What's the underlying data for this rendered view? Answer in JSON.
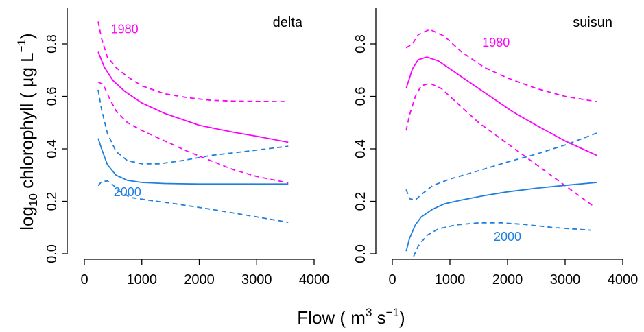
{
  "figure": {
    "ylabel_main": "log",
    "ylabel_sub": "10",
    "ylabel_rest": " chlorophyll (  µg L",
    "ylabel_sup": "−1",
    "ylabel_close": ")",
    "xlabel_main": "Flow ( m",
    "xlabel_sup1": "3",
    "xlabel_mid": " s",
    "xlabel_sup2": "−1",
    "xlabel_close": ")"
  },
  "colors": {
    "1980": "#ff00ff",
    "2000": "#1f7fe0",
    "axis": "#000000"
  },
  "chart_data": [
    {
      "type": "line",
      "title": "delta",
      "xlim": [
        0,
        4000
      ],
      "ylim": [
        0,
        0.9
      ],
      "xticks": [
        0,
        1000,
        2000,
        3000,
        4000
      ],
      "yticks": [
        0.0,
        0.2,
        0.4,
        0.6,
        0.8
      ],
      "xtick_labels": [
        "0",
        "1000",
        "2000",
        "3000",
        "4000"
      ],
      "ytick_labels": [
        "0.0",
        "0.2",
        "0.4",
        "0.6",
        "0.8"
      ],
      "annotations": [
        {
          "text": "1980",
          "x": 700,
          "y": 0.84,
          "color_key": "1980"
        },
        {
          "text": "2000",
          "x": 750,
          "y": 0.22,
          "color_key": "2000"
        }
      ],
      "series": [
        {
          "group": "1980",
          "style": "solid",
          "x": [
            240,
            350,
            500,
            700,
            1000,
            1400,
            2000,
            2600,
            3000,
            3550
          ],
          "y": [
            0.77,
            0.71,
            0.66,
            0.62,
            0.575,
            0.535,
            0.49,
            0.463,
            0.448,
            0.425
          ]
        },
        {
          "group": "1980",
          "style": "dashed",
          "x": [
            240,
            300,
            400,
            550,
            750,
            1000,
            1400,
            1800,
            2200,
            2600,
            3000,
            3550
          ],
          "y": [
            0.885,
            0.82,
            0.75,
            0.71,
            0.675,
            0.64,
            0.61,
            0.595,
            0.585,
            0.582,
            0.581,
            0.58
          ]
        },
        {
          "group": "1980",
          "style": "dashed",
          "x": [
            240,
            330,
            420,
            550,
            750,
            1000,
            1400,
            1800,
            2200,
            2600,
            3000,
            3550
          ],
          "y": [
            0.655,
            0.645,
            0.6,
            0.545,
            0.5,
            0.47,
            0.43,
            0.39,
            0.355,
            0.32,
            0.295,
            0.27
          ]
        },
        {
          "group": "2000",
          "style": "solid",
          "x": [
            240,
            300,
            400,
            550,
            750,
            1000,
            1400,
            2000,
            2600,
            3000,
            3550
          ],
          "y": [
            0.44,
            0.4,
            0.34,
            0.3,
            0.28,
            0.272,
            0.268,
            0.266,
            0.266,
            0.266,
            0.266
          ]
        },
        {
          "group": "2000",
          "style": "dashed",
          "x": [
            240,
            300,
            400,
            550,
            750,
            1000,
            1300,
            1700,
            2200,
            2800,
            3550
          ],
          "y": [
            0.625,
            0.55,
            0.46,
            0.39,
            0.355,
            0.343,
            0.343,
            0.355,
            0.375,
            0.39,
            0.41
          ]
        },
        {
          "group": "2000",
          "style": "dashed",
          "x": [
            240,
            300,
            400,
            500,
            600,
            800,
            1100,
            1600,
            2200,
            2800,
            3550
          ],
          "y": [
            0.26,
            0.275,
            0.278,
            0.262,
            0.24,
            0.215,
            0.205,
            0.19,
            0.17,
            0.148,
            0.12
          ]
        }
      ]
    },
    {
      "type": "line",
      "title": "suisun",
      "xlim": [
        0,
        4000
      ],
      "ylim": [
        0,
        0.9
      ],
      "xticks": [
        0,
        1000,
        2000,
        3000,
        4000
      ],
      "yticks": [
        0.0,
        0.2,
        0.4,
        0.6,
        0.8
      ],
      "xtick_labels": [
        "0",
        "1000",
        "2000",
        "3000",
        "4000"
      ],
      "ytick_labels": [
        "0.0",
        "0.2",
        "0.4",
        "0.6",
        "0.8"
      ],
      "annotations": [
        {
          "text": "1980",
          "x": 1800,
          "y": 0.79,
          "color_key": "1980"
        },
        {
          "text": "2000",
          "x": 2000,
          "y": 0.05,
          "color_key": "2000"
        }
      ],
      "series": [
        {
          "group": "1980",
          "style": "solid",
          "x": [
            240,
            350,
            450,
            600,
            800,
            1000,
            1300,
            1700,
            2100,
            2500,
            3000,
            3550
          ],
          "y": [
            0.63,
            0.705,
            0.74,
            0.75,
            0.735,
            0.705,
            0.66,
            0.6,
            0.54,
            0.49,
            0.43,
            0.375
          ]
        },
        {
          "group": "1980",
          "style": "dashed",
          "x": [
            240,
            350,
            450,
            650,
            900,
            1200,
            1600,
            2000,
            2500,
            3000,
            3550
          ],
          "y": [
            0.785,
            0.8,
            0.835,
            0.855,
            0.83,
            0.77,
            0.71,
            0.67,
            0.63,
            0.6,
            0.58
          ]
        },
        {
          "group": "1980",
          "style": "dashed",
          "x": [
            240,
            300,
            400,
            500,
            650,
            850,
            1100,
            1500,
            2000,
            2500,
            3000,
            3500
          ],
          "y": [
            0.47,
            0.53,
            0.6,
            0.64,
            0.65,
            0.63,
            0.58,
            0.5,
            0.42,
            0.34,
            0.26,
            0.18
          ]
        },
        {
          "group": "2000",
          "style": "solid",
          "x": [
            240,
            300,
            400,
            500,
            700,
            900,
            1200,
            1600,
            2000,
            2500,
            3000,
            3550
          ],
          "y": [
            0.01,
            0.06,
            0.11,
            0.14,
            0.17,
            0.19,
            0.205,
            0.222,
            0.236,
            0.25,
            0.261,
            0.272
          ]
        },
        {
          "group": "2000",
          "style": "dashed",
          "x": [
            240,
            300,
            400,
            500,
            700,
            1000,
            1400,
            2000,
            2500,
            3000,
            3550
          ],
          "y": [
            0.245,
            0.21,
            0.205,
            0.225,
            0.26,
            0.285,
            0.31,
            0.35,
            0.38,
            0.415,
            0.46
          ]
        },
        {
          "group": "2000",
          "style": "dashed",
          "x": [
            370,
            450,
            600,
            800,
            1100,
            1500,
            1900,
            2300,
            2800,
            3450
          ],
          "y": [
            -0.01,
            0.03,
            0.07,
            0.095,
            0.11,
            0.118,
            0.118,
            0.112,
            0.1,
            0.09
          ]
        }
      ]
    }
  ]
}
